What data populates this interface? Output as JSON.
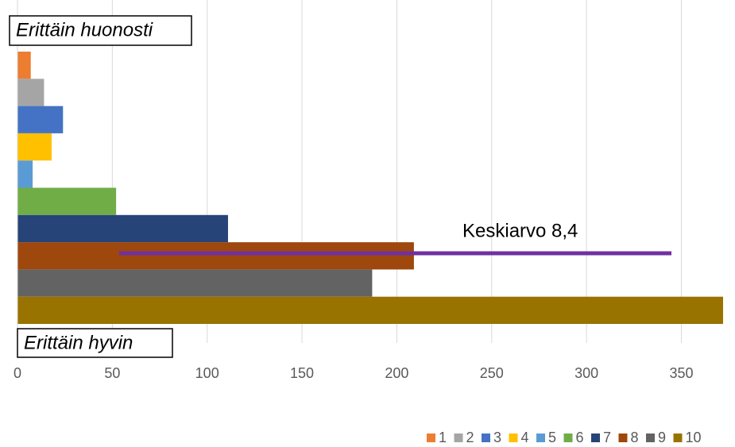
{
  "chart_data": {
    "type": "bar",
    "orientation": "horizontal",
    "series": [
      {
        "name": "1",
        "color": "#ed7d31",
        "values": [
          7
        ]
      },
      {
        "name": "2",
        "color": "#a5a5a5",
        "values": [
          14
        ]
      },
      {
        "name": "3",
        "color": "#4472c4",
        "values": [
          24
        ]
      },
      {
        "name": "4",
        "color": "#ffc000",
        "values": [
          18
        ]
      },
      {
        "name": "5",
        "color": "#5b9bd5",
        "values": [
          8
        ]
      },
      {
        "name": "6",
        "color": "#70ad47",
        "values": [
          52
        ]
      },
      {
        "name": "7",
        "color": "#264478",
        "values": [
          111
        ]
      },
      {
        "name": "8",
        "color": "#9e480e",
        "values": [
          209
        ]
      },
      {
        "name": "9",
        "color": "#636363",
        "values": [
          187
        ]
      },
      {
        "name": "10",
        "color": "#997300",
        "values": [
          372
        ]
      }
    ],
    "xlim": [
      0,
      372
    ],
    "xticks": [
      0,
      50,
      100,
      150,
      200,
      250,
      300,
      350
    ],
    "grid": true,
    "legend": "bottom",
    "annotations": [
      "Erittäin huonosti",
      "Erittäin hyvin",
      "Keskiarvo 8,4"
    ]
  }
}
